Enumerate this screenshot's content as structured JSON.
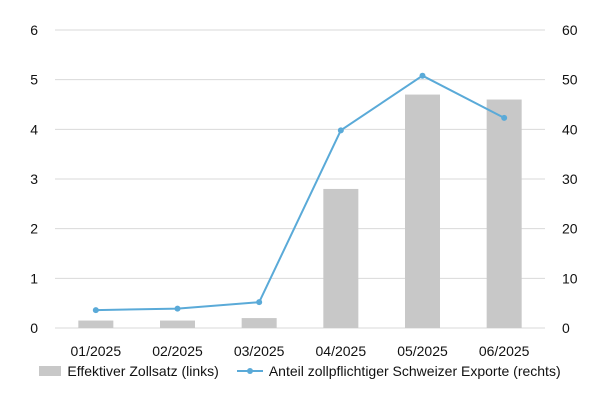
{
  "colors": {
    "bar": "#c8c8c8",
    "line": "#5aaad8",
    "grid": "#d9d9d9",
    "text": "#111111"
  },
  "chart_data": {
    "type": "bar",
    "categories": [
      "01/2025",
      "02/2025",
      "03/2025",
      "04/2025",
      "05/2025",
      "06/2025"
    ],
    "series": [
      {
        "name": "Effektiver Zollsatz (links)",
        "type": "bar",
        "axis": "left",
        "values": [
          0.15,
          0.15,
          0.2,
          2.8,
          4.7,
          4.6
        ]
      },
      {
        "name": "Anteil zollpflichtiger Schweizer Exporte (rechts)",
        "type": "line",
        "axis": "right",
        "values": [
          3.6,
          3.9,
          5.2,
          39.8,
          50.8,
          42.3
        ]
      }
    ],
    "ylim_left": [
      0,
      6
    ],
    "yticks_left": [
      "0",
      "1",
      "2",
      "3",
      "4",
      "5",
      "6"
    ],
    "ylim_right": [
      0,
      60
    ],
    "yticks_right": [
      "0",
      "10",
      "20",
      "30",
      "40",
      "50",
      "60"
    ],
    "grid": "horizontal",
    "legend_position": "bottom",
    "title": "",
    "xlabel": "",
    "ylabel": ""
  }
}
